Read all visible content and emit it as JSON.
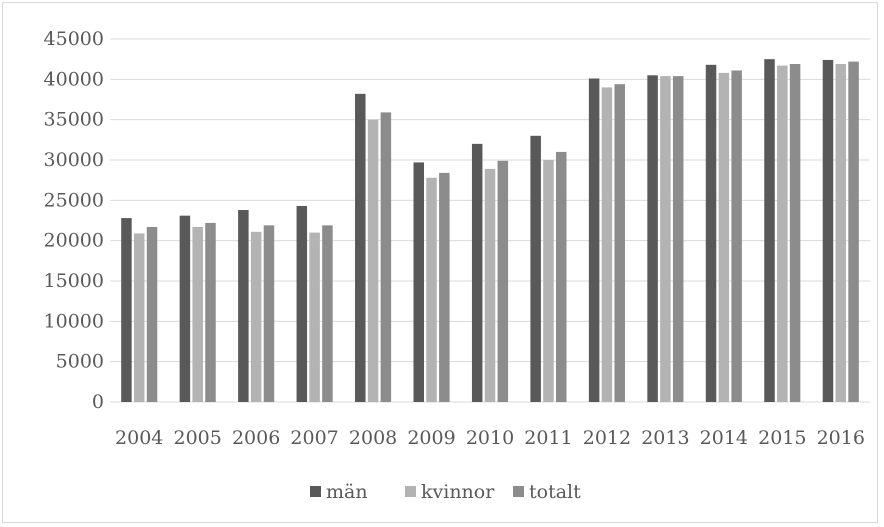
{
  "chart_data": {
    "type": "bar",
    "categories": [
      "2004",
      "2005",
      "2006",
      "2007",
      "2008",
      "2009",
      "2010",
      "2011",
      "2012",
      "2013",
      "2014",
      "2015",
      "2016"
    ],
    "series": [
      {
        "name": "män",
        "color": "#595959",
        "values": [
          22800,
          23100,
          23800,
          24300,
          38200,
          29700,
          32000,
          33000,
          40100,
          40500,
          41800,
          42500,
          42400
        ]
      },
      {
        "name": "kvinnor",
        "color": "#b3b3b3",
        "values": [
          20900,
          21700,
          21100,
          21000,
          35000,
          27800,
          28900,
          30000,
          39000,
          40400,
          40800,
          41700,
          41900
        ]
      },
      {
        "name": "totalt",
        "color": "#8c8c8c",
        "values": [
          21700,
          22200,
          21900,
          21900,
          35900,
          28400,
          29900,
          31000,
          39400,
          40400,
          41100,
          41900,
          42200
        ]
      }
    ],
    "yticks": [
      0,
      5000,
      10000,
      15000,
      20000,
      25000,
      30000,
      35000,
      40000,
      45000
    ],
    "ylim": [
      0,
      45000
    ],
    "grid": true,
    "legend": "bottom"
  }
}
